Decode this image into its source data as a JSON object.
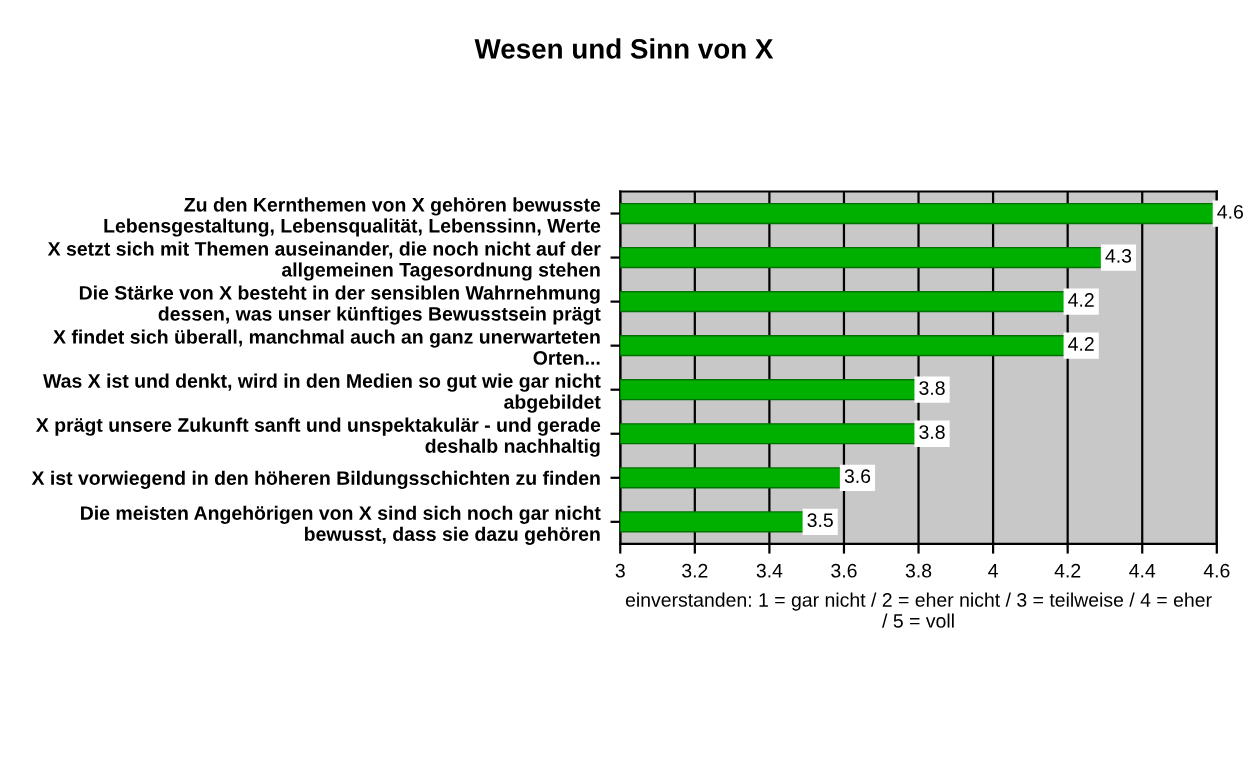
{
  "chart_data": {
    "type": "bar",
    "orientation": "horizontal",
    "title": "Wesen und Sinn von X",
    "categories": [
      "Zu den Kernthemen von X gehören bewusste\nLebensgestaltung, Lebensqualität, Lebenssinn, Werte",
      "X setzt sich mit Themen auseinander, die noch nicht auf der\nallgemeinen Tagesordnung stehen",
      "Die Stärke von X besteht in der sensiblen Wahrnehmung\ndessen, was unser künftiges Bewusstsein prägt",
      "X findet sich überall, manchmal auch an ganz unerwarteten\nOrten...",
      "Was X ist und denkt, wird in den Medien so gut wie gar nicht\nabgebildet",
      "X prägt unsere Zukunft sanft und unspektakulär - und gerade\ndeshalb nachhaltig",
      "X ist vorwiegend in den höheren Bildungsschichten zu finden",
      "Die meisten Angehörigen von X sind sich noch gar nicht\nbewusst, dass sie dazu gehören"
    ],
    "values": [
      4.6,
      4.3,
      4.2,
      4.2,
      3.8,
      3.8,
      3.6,
      3.5
    ],
    "color": "#00b000",
    "data_labels": true,
    "xlabel": "einverstanden: 1 = gar nicht / 2 = eher nicht / 3 = teilweise / 4 = eher\n/ 5 = voll",
    "xlim": [
      3,
      4.6
    ],
    "xticks": [
      3,
      3.2,
      3.4,
      3.6,
      3.8,
      4,
      4.2,
      4.4,
      4.6
    ],
    "grid": "x",
    "legend": false
  }
}
